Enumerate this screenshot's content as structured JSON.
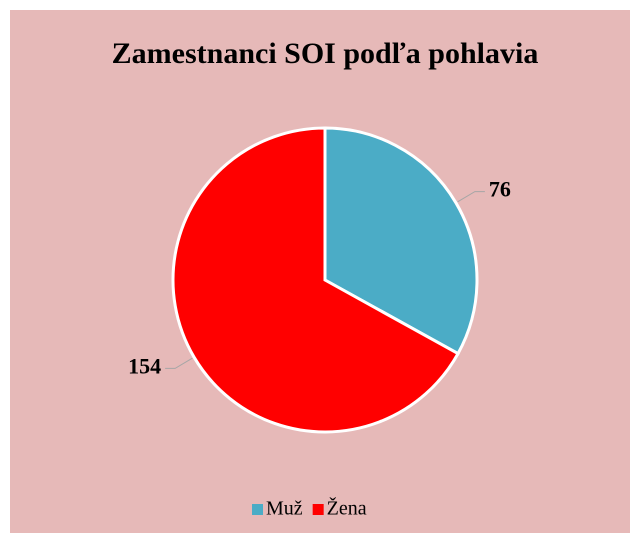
{
  "chart_data": {
    "type": "pie",
    "title": "Zamestnanci SOI podľa pohlavia",
    "categories": [
      "Muž",
      "Žena"
    ],
    "values": [
      76,
      154
    ],
    "colors": [
      "#4bacc6",
      "#ff0000"
    ],
    "legend": "bottom"
  }
}
